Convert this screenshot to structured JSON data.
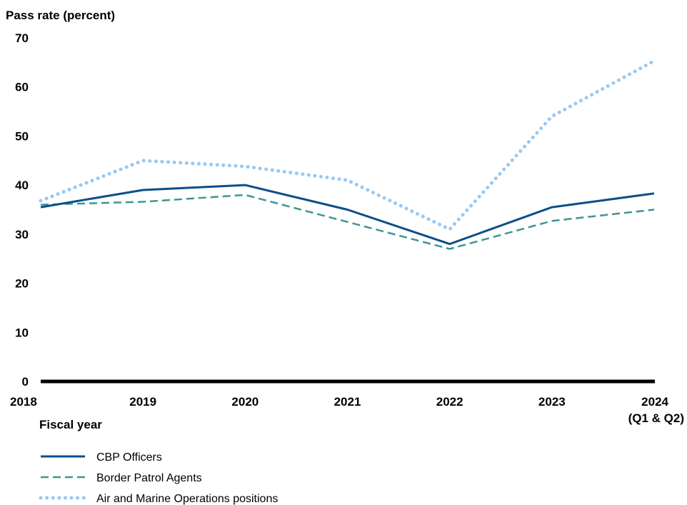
{
  "chart_data": {
    "type": "line",
    "ylabel": "Pass rate (percent)",
    "xlabel": "Fiscal year",
    "ylim": [
      0,
      70
    ],
    "yticks": [
      0,
      10,
      20,
      30,
      40,
      50,
      60,
      70
    ],
    "categories": [
      "2018",
      "2019",
      "2020",
      "2021",
      "2022",
      "2023",
      "2024"
    ],
    "category_sublabels": [
      "",
      "",
      "",
      "",
      "",
      "",
      "(Q1 & Q2)"
    ],
    "series": [
      {
        "name": "CBP Officers",
        "style": "solid",
        "color": "#0b4f8a",
        "values": [
          35.5,
          39.0,
          40.0,
          35.0,
          28.0,
          35.5,
          38.3
        ]
      },
      {
        "name": "Border Patrol Agents",
        "style": "dashed",
        "color": "#3e9690",
        "values": [
          36.0,
          36.6,
          38.0,
          32.5,
          27.0,
          32.7,
          35.0
        ]
      },
      {
        "name": "Air and Marine Operations positions",
        "style": "dotted",
        "color": "#99c9f2",
        "values": [
          36.8,
          45.0,
          43.8,
          41.0,
          31.0,
          54.0,
          65.3
        ]
      }
    ],
    "legend_position": "bottom-left",
    "grid": false
  }
}
